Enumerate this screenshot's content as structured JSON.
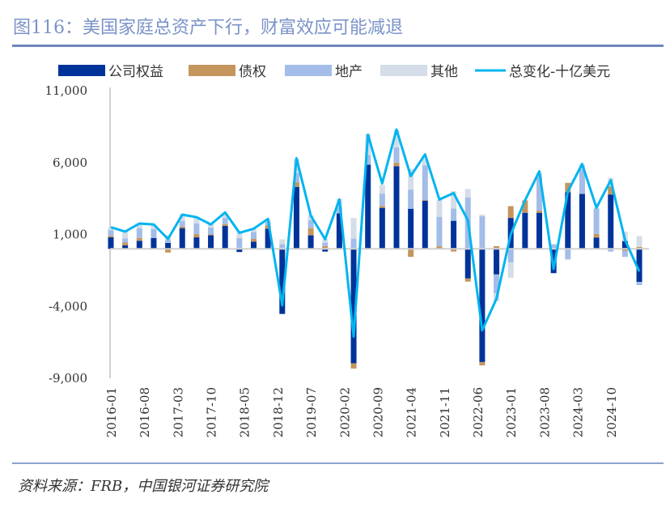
{
  "title": "图116：美国家庭总资产下行，财富效应可能减退",
  "source": "资料来源：FRB，中国银河证券研究院",
  "chart_data": {
    "type": "bar",
    "stacked": true,
    "title": "图116：美国家庭总资产下行，财富效应可能减退",
    "xlabel": "",
    "ylabel": "",
    "ylim": [
      -9000,
      11000
    ],
    "yticks": [
      11000,
      6000,
      1000,
      -4000,
      -9000
    ],
    "ytick_labels": [
      "11,000",
      "6,000",
      "1,000",
      "-4,000",
      "-9,000"
    ],
    "xtick_labels": [
      "2016-01",
      "2016-08",
      "2017-03",
      "2017-10",
      "2018-05",
      "2018-12",
      "2019-07",
      "2020-02",
      "2020-09",
      "2021-04",
      "2021-11",
      "2022-06",
      "2023-01",
      "2023-08",
      "2024-03",
      "2024-10"
    ],
    "legend_position": "top",
    "colors": {
      "equity": "#00339a",
      "bonds": "#c4965e",
      "real_estate": "#a3bde8",
      "other": "#d4dde8",
      "total": "#00b4f0"
    },
    "series": [
      {
        "name": "公司权益",
        "key": "equity",
        "type": "bar",
        "values": [
          800,
          250,
          560,
          750,
          410,
          1440,
          800,
          940,
          1590,
          -220,
          500,
          1400,
          -4530,
          4310,
          940,
          -190,
          2470,
          -7960,
          5860,
          2850,
          5750,
          2790,
          3350,
          0,
          1950,
          -2060,
          -7870,
          -1780,
          2150,
          2510,
          2510,
          -1690,
          3930,
          3820,
          790,
          3780,
          540,
          -2300
        ]
      },
      {
        "name": "债权",
        "key": "bonds",
        "type": "bar",
        "values": [
          100,
          190,
          190,
          0,
          -260,
          110,
          225,
          60,
          130,
          0,
          190,
          220,
          0,
          320,
          500,
          190,
          0,
          -370,
          0,
          130,
          240,
          -560,
          60,
          190,
          -190,
          -220,
          -240,
          190,
          820,
          860,
          150,
          0,
          660,
          0,
          240,
          560,
          -150,
          130
        ]
      },
      {
        "name": "地产",
        "key": "real_estate",
        "type": "bar",
        "values": [
          400,
          280,
          690,
          620,
          240,
          375,
          750,
          490,
          430,
          750,
          490,
          240,
          320,
          620,
          560,
          240,
          430,
          710,
          660,
          860,
          1070,
          1330,
          2400,
          2040,
          860,
          3560,
          2280,
          -1310,
          -940,
          0,
          2340,
          320,
          -690,
          1740,
          1780,
          -190,
          -410,
          -220
        ]
      },
      {
        "name": "其他",
        "key": "other",
        "type": "bar",
        "values": [
          200,
          470,
          340,
          320,
          300,
          470,
          375,
          240,
          280,
          470,
          220,
          190,
          340,
          1000,
          340,
          260,
          560,
          1440,
          1440,
          600,
          1200,
          1440,
          470,
          1180,
          1200,
          600,
          100,
          -560,
          -1070,
          0,
          280,
          0,
          -90,
          280,
          0,
          600,
          650,
          750
        ]
      },
      {
        "name": "总变化-十亿美元",
        "key": "total",
        "type": "line",
        "values": [
          1500,
          1200,
          1760,
          1700,
          690,
          2380,
          2200,
          1700,
          2530,
          1120,
          1400,
          2080,
          -3930,
          6300,
          2300,
          670,
          3440,
          -6100,
          7940,
          4550,
          8300,
          5060,
          6570,
          3430,
          3880,
          1970,
          -5670,
          -3480,
          1010,
          3370,
          5390,
          -1400,
          3990,
          5900,
          2860,
          4780,
          620,
          -1570
        ]
      }
    ]
  }
}
